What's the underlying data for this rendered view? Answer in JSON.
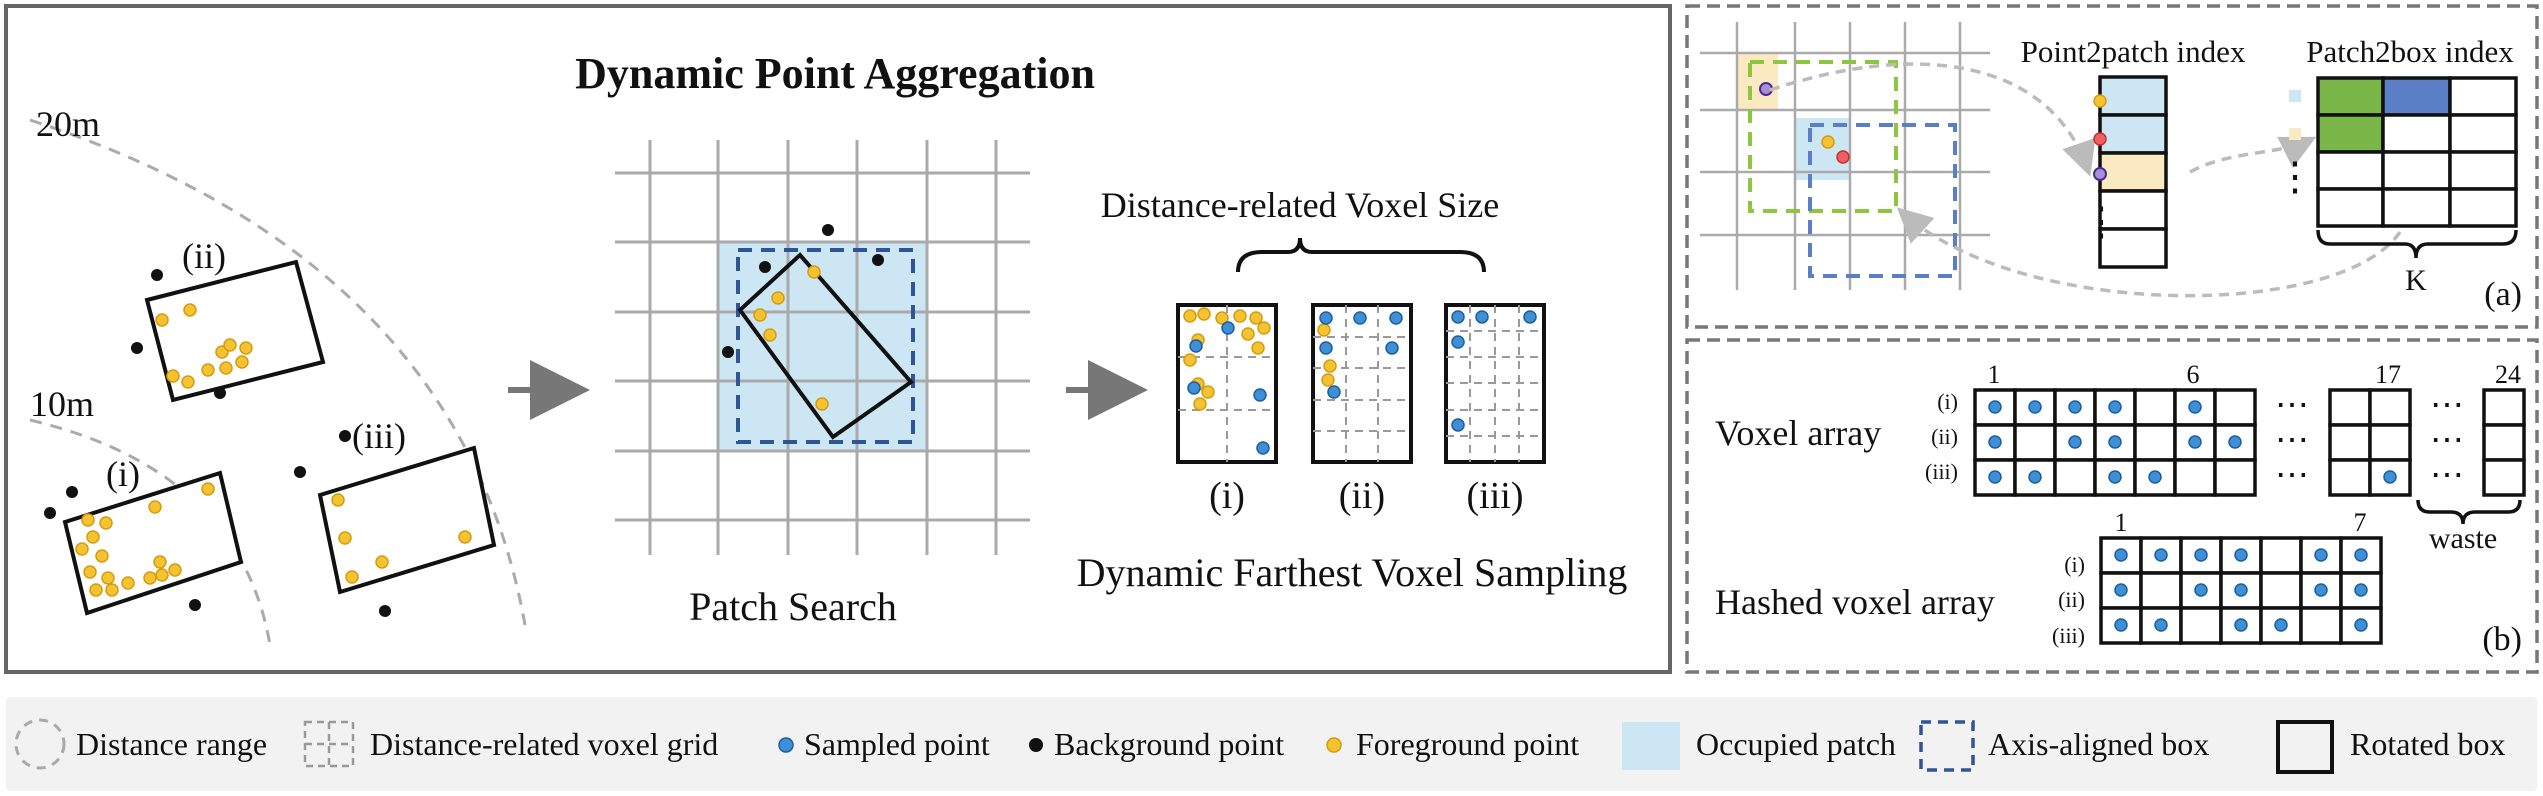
{
  "main_panel": {
    "title": "Dynamic Point Aggregation",
    "ring_outer_label": "20m",
    "ring_inner_label": "10m",
    "box_labels": [
      "(i)",
      "(ii)",
      "(iii)"
    ],
    "patch_search_label": "Patch Search",
    "voxel_size_label": "Distance-related Voxel Size",
    "sampling_label": "Dynamic Farthest Voxel Sampling",
    "grid_labels": [
      "(i)",
      "(ii)",
      "(iii)"
    ]
  },
  "panel_a": {
    "point2patch_label": "Point2patch index",
    "patch2box_label": "Patch2box index",
    "k_label": "K",
    "panel_tag": "(a)",
    "dots": "⋮"
  },
  "panel_b": {
    "voxel_array_label": "Voxel array",
    "hashed_label": "Hashed voxel array",
    "row_labels": [
      "(i)",
      "(ii)",
      "(iii)"
    ],
    "col_first": "1",
    "col_six": "6",
    "col_seventeen": "17",
    "col_last": "24",
    "hashed_col_first": "1",
    "hashed_col_last": "7",
    "waste_label": "waste",
    "ellipsis": "⋯",
    "panel_tag": "(b)"
  },
  "legend": {
    "distance_range": "Distance range",
    "voxel_grid": "Distance-related voxel grid",
    "sampled_point": "Sampled point",
    "background_point": "Background point",
    "foreground_point": "Foreground point",
    "occupied_patch": "Occupied patch",
    "axis_aligned_box": "Axis-aligned box",
    "rotated_box": "Rotated box"
  },
  "colors": {
    "foreground": "#f5c330",
    "sampled": "#3d8fd6",
    "background": "#111111",
    "occupied": "#cde6f4",
    "axis_box": "#2f5597",
    "green": "#7ab648",
    "blue_cell": "#5b7fc7",
    "yellow_cell": "#fbe9c2"
  }
}
